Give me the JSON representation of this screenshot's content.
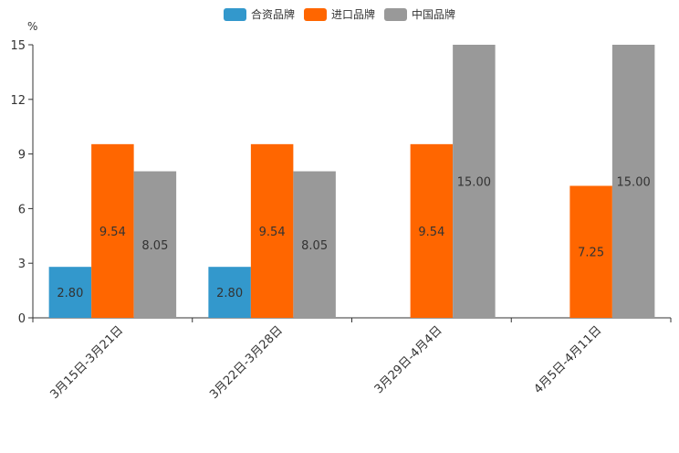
{
  "chart_data": {
    "type": "bar",
    "title": "",
    "ylabel": "%",
    "xlabel": "",
    "ylim": [
      0,
      15
    ],
    "yticks": [
      0,
      3,
      6,
      9,
      12,
      15
    ],
    "categories": [
      "3月15日-3月21日",
      "3月22日-3月28日",
      "3月29日-4月4日",
      "4月5日-4月11日"
    ],
    "series": [
      {
        "name": "合资品牌",
        "color": "#3398cc",
        "values": [
          2.8,
          2.8,
          null,
          null
        ],
        "labels": [
          "2.80",
          "2.80",
          "",
          ""
        ]
      },
      {
        "name": "进口品牌",
        "color": "#ff6600",
        "values": [
          9.54,
          9.54,
          9.54,
          7.25
        ],
        "labels": [
          "9.54",
          "9.54",
          "9.54",
          "7.25"
        ]
      },
      {
        "name": "中国品牌",
        "color": "#999999",
        "values": [
          8.05,
          8.05,
          15.0,
          15.0
        ],
        "labels": [
          "8.05",
          "8.05",
          "15.00",
          "15.00"
        ]
      }
    ],
    "legend_position": "top-center",
    "grid": false
  }
}
